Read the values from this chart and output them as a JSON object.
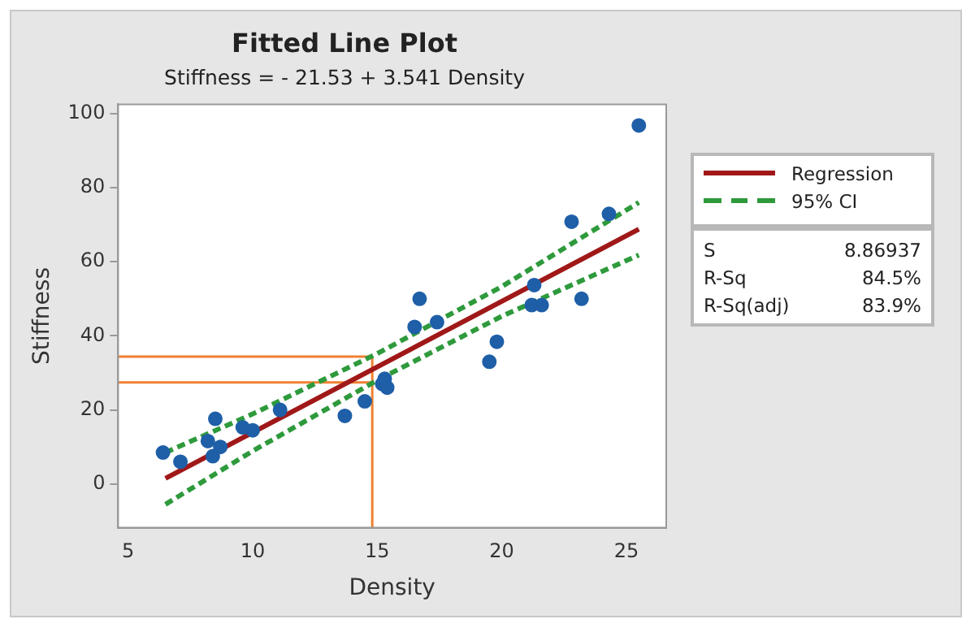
{
  "chart_data": {
    "type": "scatter",
    "title": "Fitted Line Plot",
    "subtitle": "Stiffness = - 21.53 + 3.541 Density",
    "xlabel": "Density",
    "ylabel": "Stiffness",
    "xlim": [
      4.6,
      26.6
    ],
    "ylim": [
      -11.8,
      102.5
    ],
    "xticks": [
      5,
      10,
      15,
      20,
      25
    ],
    "yticks": [
      0,
      20,
      40,
      60,
      80,
      100
    ],
    "grid": false,
    "legend": "right",
    "series": [
      {
        "marker": "circle",
        "color": "#1f5fa8",
        "x": [
          6.4,
          7.1,
          8.2,
          8.5,
          8.4,
          8.7,
          9.6,
          10.0,
          11.1,
          13.7,
          14.5,
          15.2,
          15.3,
          15.4,
          16.5,
          16.7,
          17.4,
          19.5,
          19.8,
          21.2,
          21.3,
          21.6,
          22.8,
          23.2,
          24.3,
          25.5
        ],
        "values": [
          8.5,
          6,
          11.6,
          17.6,
          7.5,
          10,
          15.3,
          14.5,
          20,
          18.4,
          22.3,
          27,
          28.4,
          26,
          42.4,
          50,
          43.7,
          33,
          38.4,
          48.3,
          53.7,
          48.3,
          70.8,
          50,
          72.9,
          96.8
        ]
      },
      {
        "type": "line",
        "name": "Regression",
        "color": "#a01818",
        "marker": "none",
        "line_style": "solid",
        "x": [
          6.5,
          25.5
        ],
        "values": [
          1.5,
          68.8
        ]
      },
      {
        "type": "line",
        "name": "95% CI",
        "color": "#2e9a3c",
        "marker": "none",
        "line_style": "dashed",
        "x": [
          6.5,
          10,
          15,
          20,
          25.5
        ],
        "values": [
          8.5,
          18.9,
          35.2,
          53.3,
          76
        ]
      },
      {
        "type": "line",
        "color": "#2e9a3c",
        "marker": "none",
        "line_style": "dashed",
        "x": [
          6.5,
          10,
          15,
          20,
          25.5
        ],
        "values": [
          -5.5,
          8.9,
          28,
          45.3,
          61.8
        ]
      }
    ],
    "ref_lines": [
      {
        "axis": "x",
        "value": 14.8,
        "color": "#f08030"
      },
      {
        "axis": "y",
        "value": 34.4,
        "color": "#f08030"
      },
      {
        "axis": "y",
        "value": 27.4,
        "color": "#f08030"
      }
    ],
    "annotations": [
      "S",
      "8.86937",
      "R-Sq",
      "84.5%",
      "R-Sq(adj)",
      "83.9%"
    ]
  }
}
